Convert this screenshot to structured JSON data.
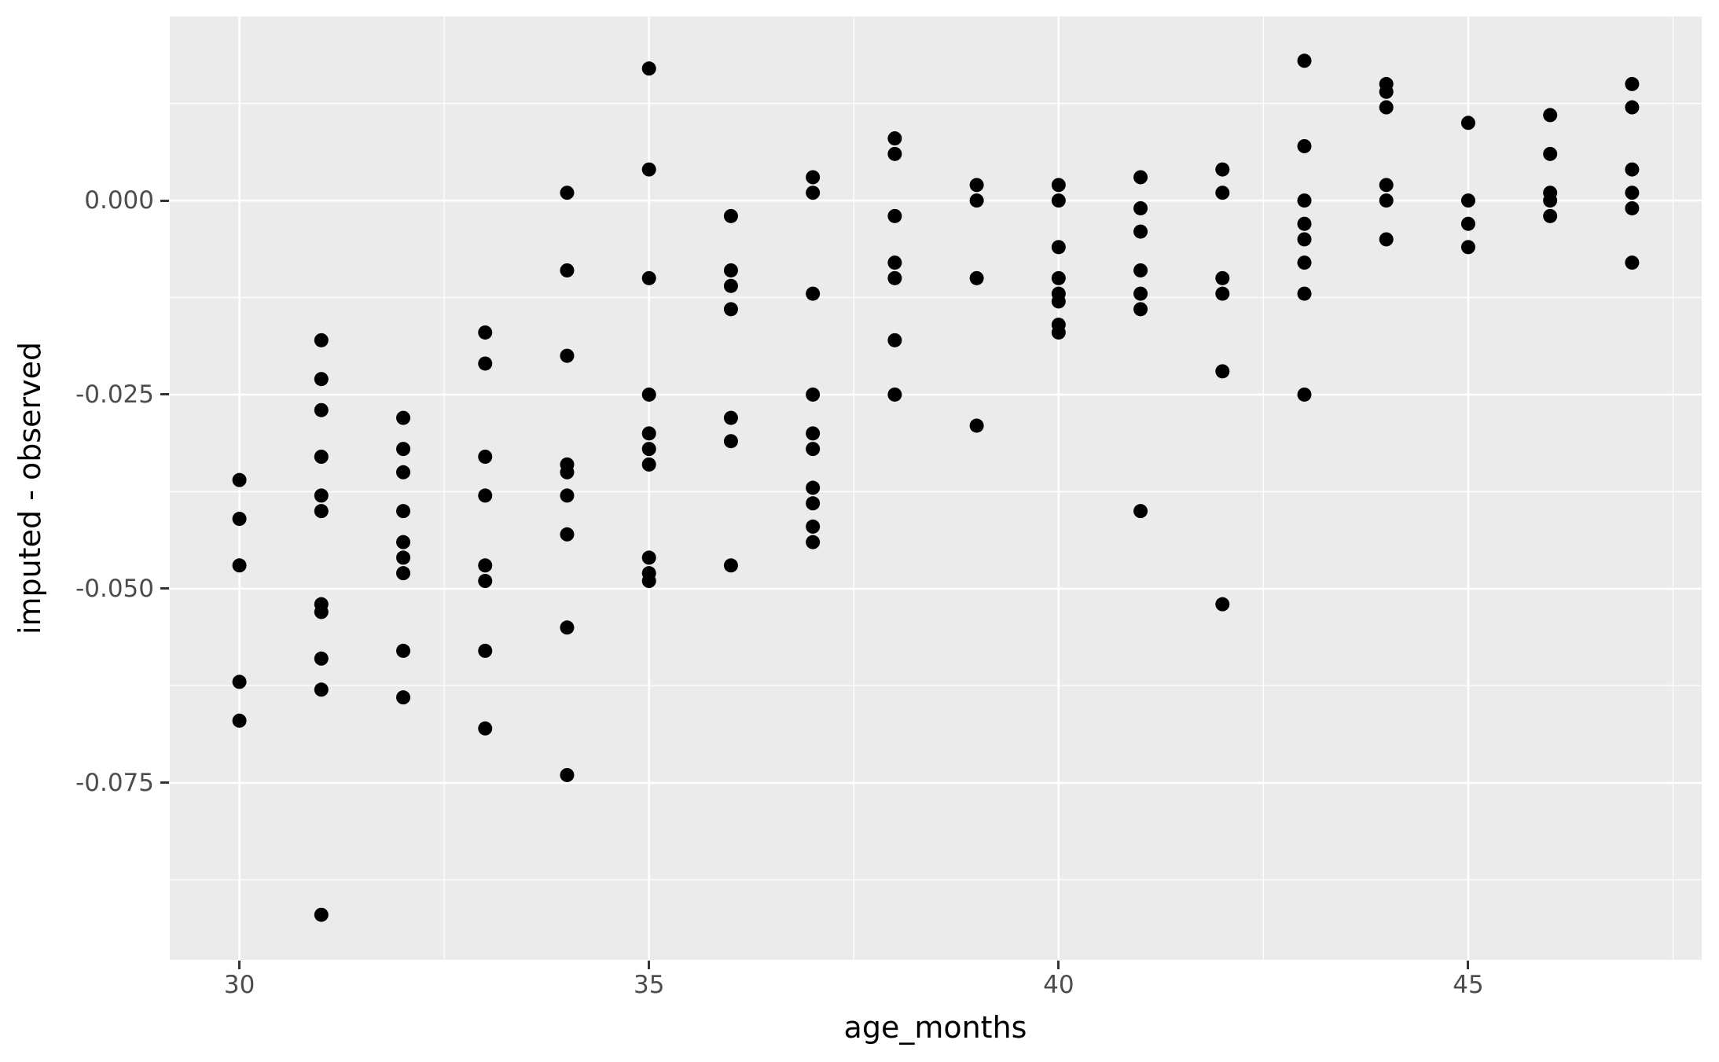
{
  "chart": {
    "x_title": "age_months",
    "y_title": "imputed - observed"
  },
  "chart_data": {
    "type": "scatter",
    "title": "",
    "xlabel": "age_months",
    "ylabel": "imputed - observed",
    "xlim": [
      29.15,
      47.85
    ],
    "ylim": [
      -0.0978,
      0.0237
    ],
    "grid": true,
    "legend_position": "none",
    "panel_bg": "#EBEBEB",
    "grid_color": "#FFFFFF",
    "point_color": "#000000",
    "tick_label_color": "#4D4D4D",
    "axis_title_color": "#000000",
    "point_radius_px": 9,
    "x_ticks": {
      "values": [
        30,
        35,
        40,
        45
      ],
      "labels": [
        "30",
        "35",
        "40",
        "45"
      ]
    },
    "y_ticks": {
      "values": [
        0,
        -0.025,
        -0.05,
        -0.075
      ],
      "labels": [
        "0.000",
        "-0.025",
        "-0.050",
        "-0.075"
      ]
    },
    "x_minor": [
      32.5,
      37.5,
      42.5,
      47.5
    ],
    "y_minor": [
      0.0125,
      -0.0125,
      -0.0375,
      -0.0625,
      -0.0875
    ],
    "points": [
      [
        30,
        -0.036
      ],
      [
        30,
        -0.041
      ],
      [
        30,
        -0.047
      ],
      [
        30,
        -0.062
      ],
      [
        30,
        -0.067
      ],
      [
        31,
        -0.018
      ],
      [
        31,
        -0.023
      ],
      [
        31,
        -0.027
      ],
      [
        31,
        -0.033
      ],
      [
        31,
        -0.038
      ],
      [
        31,
        -0.04
      ],
      [
        31,
        -0.052
      ],
      [
        31,
        -0.053
      ],
      [
        31,
        -0.059
      ],
      [
        31,
        -0.063
      ],
      [
        31,
        -0.092
      ],
      [
        32,
        -0.028
      ],
      [
        32,
        -0.032
      ],
      [
        32,
        -0.035
      ],
      [
        32,
        -0.04
      ],
      [
        32,
        -0.044
      ],
      [
        32,
        -0.046
      ],
      [
        32,
        -0.048
      ],
      [
        32,
        -0.058
      ],
      [
        32,
        -0.064
      ],
      [
        33,
        -0.017
      ],
      [
        33,
        -0.021
      ],
      [
        33,
        -0.033
      ],
      [
        33,
        -0.038
      ],
      [
        33,
        -0.047
      ],
      [
        33,
        -0.049
      ],
      [
        33,
        -0.058
      ],
      [
        33,
        -0.068
      ],
      [
        34,
        0.001
      ],
      [
        34,
        -0.009
      ],
      [
        34,
        -0.02
      ],
      [
        34,
        -0.034
      ],
      [
        34,
        -0.035
      ],
      [
        34,
        -0.038
      ],
      [
        34,
        -0.043
      ],
      [
        34,
        -0.055
      ],
      [
        34,
        -0.074
      ],
      [
        35,
        0.017
      ],
      [
        35,
        0.004
      ],
      [
        35,
        -0.01
      ],
      [
        35,
        -0.025
      ],
      [
        35,
        -0.03
      ],
      [
        35,
        -0.032
      ],
      [
        35,
        -0.034
      ],
      [
        35,
        -0.046
      ],
      [
        35,
        -0.048
      ],
      [
        35,
        -0.049
      ],
      [
        36,
        -0.002
      ],
      [
        36,
        -0.009
      ],
      [
        36,
        -0.011
      ],
      [
        36,
        -0.014
      ],
      [
        36,
        -0.028
      ],
      [
        36,
        -0.031
      ],
      [
        36,
        -0.047
      ],
      [
        37,
        0.003
      ],
      [
        37,
        0.001
      ],
      [
        37,
        -0.012
      ],
      [
        37,
        -0.025
      ],
      [
        37,
        -0.03
      ],
      [
        37,
        -0.032
      ],
      [
        37,
        -0.037
      ],
      [
        37,
        -0.039
      ],
      [
        37,
        -0.042
      ],
      [
        37,
        -0.044
      ],
      [
        38,
        0.008
      ],
      [
        38,
        0.006
      ],
      [
        38,
        -0.002
      ],
      [
        38,
        -0.008
      ],
      [
        38,
        -0.01
      ],
      [
        38,
        -0.018
      ],
      [
        38,
        -0.025
      ],
      [
        39,
        0.002
      ],
      [
        39,
        0.0
      ],
      [
        39,
        -0.01
      ],
      [
        39,
        -0.029
      ],
      [
        40,
        0.002
      ],
      [
        40,
        0.0
      ],
      [
        40,
        -0.006
      ],
      [
        40,
        -0.01
      ],
      [
        40,
        -0.012
      ],
      [
        40,
        -0.013
      ],
      [
        40,
        -0.016
      ],
      [
        40,
        -0.017
      ],
      [
        41,
        0.003
      ],
      [
        41,
        -0.001
      ],
      [
        41,
        -0.004
      ],
      [
        41,
        -0.009
      ],
      [
        41,
        -0.012
      ],
      [
        41,
        -0.014
      ],
      [
        41,
        -0.04
      ],
      [
        42,
        0.004
      ],
      [
        42,
        0.001
      ],
      [
        42,
        -0.01
      ],
      [
        42,
        -0.012
      ],
      [
        42,
        -0.022
      ],
      [
        42,
        -0.052
      ],
      [
        43,
        0.018
      ],
      [
        43,
        0.007
      ],
      [
        43,
        0.0
      ],
      [
        43,
        -0.003
      ],
      [
        43,
        -0.005
      ],
      [
        43,
        -0.008
      ],
      [
        43,
        -0.012
      ],
      [
        43,
        -0.025
      ],
      [
        44,
        0.015
      ],
      [
        44,
        0.014
      ],
      [
        44,
        0.012
      ],
      [
        44,
        0.002
      ],
      [
        44,
        0.0
      ],
      [
        44,
        -0.005
      ],
      [
        45,
        0.01
      ],
      [
        45,
        0.0
      ],
      [
        45,
        -0.003
      ],
      [
        45,
        -0.006
      ],
      [
        46,
        0.011
      ],
      [
        46,
        0.006
      ],
      [
        46,
        0.001
      ],
      [
        46,
        0.0
      ],
      [
        46,
        -0.002
      ],
      [
        47,
        0.015
      ],
      [
        47,
        0.012
      ],
      [
        47,
        0.004
      ],
      [
        47,
        0.001
      ],
      [
        47,
        -0.001
      ],
      [
        47,
        -0.008
      ]
    ]
  }
}
